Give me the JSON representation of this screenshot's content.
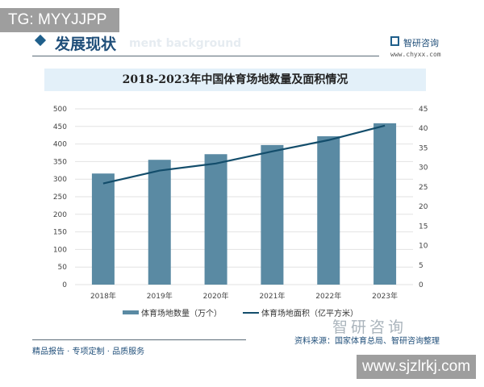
{
  "overlay_top": "TG: MYYJJPP",
  "overlay_bottom": "www.sjzlrkj.com",
  "header": {
    "section_title": "发展现状",
    "section_bg_text": "ment background",
    "logo_name": "智研咨询",
    "logo_url": "www.chyxx.com"
  },
  "footer": {
    "source": "资料来源：国家体育总局、智研咨询整理",
    "tagline": "精品报告 · 专项定制 · 品质服务",
    "watermark_logo": "智研咨询"
  },
  "colors": {
    "bar": "#5a8aa3",
    "line": "#134d6b",
    "title_band": "#e3f0f9"
  },
  "chart_data": {
    "type": "bar+line",
    "title": "2018-2023年中国体育场地数量及面积情况",
    "categories": [
      "2018年",
      "2019年",
      "2020年",
      "2021年",
      "2022年",
      "2023年"
    ],
    "series": [
      {
        "name": "体育场地数量（万个）",
        "type": "bar",
        "axis": "left",
        "values": [
          316,
          355,
          371,
          397,
          422,
          459
        ]
      },
      {
        "name": "体育场地面积（亿平方米）",
        "type": "line",
        "axis": "right",
        "values": [
          25.9,
          29.2,
          31.0,
          34.1,
          37.0,
          40.7
        ]
      }
    ],
    "y_left": {
      "range": [
        0,
        500
      ],
      "ticks": [
        0,
        50,
        100,
        150,
        200,
        250,
        300,
        350,
        400,
        450,
        500
      ]
    },
    "y_right": {
      "range": [
        0,
        45
      ],
      "ticks": [
        0,
        5,
        10,
        15,
        20,
        25,
        30,
        35,
        40,
        45
      ]
    },
    "grid": true,
    "legend": "bottom"
  }
}
